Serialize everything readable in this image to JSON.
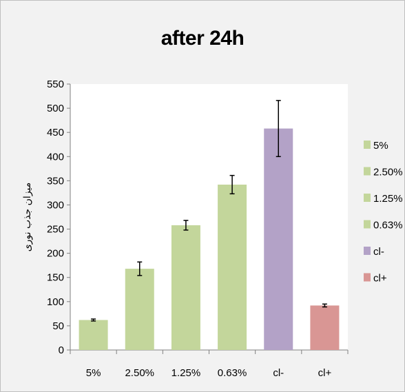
{
  "chart_data": {
    "type": "bar",
    "title": "after 24h",
    "ylabel": "میزان جذب نوری",
    "xlabel": "",
    "categories": [
      "5%",
      "2.50%",
      "1.25%",
      "0.63%",
      "cl-",
      "cl+"
    ],
    "values": [
      62,
      168,
      258,
      342,
      458,
      92
    ],
    "errors": [
      2,
      14,
      10,
      19,
      58,
      3
    ],
    "colors": [
      "#c3d69b",
      "#c3d69b",
      "#c3d69b",
      "#c3d69b",
      "#b3a2c7",
      "#d99694"
    ],
    "ylim": [
      0,
      550
    ],
    "yticks": [
      0,
      50,
      100,
      150,
      200,
      250,
      300,
      350,
      400,
      450,
      500,
      550
    ],
    "grid": false,
    "legend_position": "right",
    "legend": [
      {
        "label": "5%",
        "color": "#c3d69b"
      },
      {
        "label": "2.50%",
        "color": "#c3d69b"
      },
      {
        "label": "1.25%",
        "color": "#c3d69b"
      },
      {
        "label": "0.63%",
        "color": "#c3d69b"
      },
      {
        "label": "cl-",
        "color": "#b3a2c7"
      },
      {
        "label": "cl+",
        "color": "#d99694"
      }
    ]
  }
}
